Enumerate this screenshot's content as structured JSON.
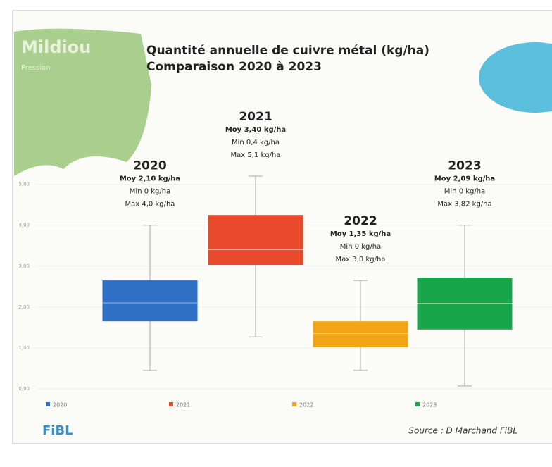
{
  "chart_data": {
    "type": "box",
    "corner_title": "Mildiou",
    "corner_subtitle": "Pression",
    "title": "Quantité annuelle de cuivre métal (kg/ha)",
    "subtitle": "Comparaison 2020 à 2023",
    "source": "Source : D Marchand FiBL",
    "logo": "FiBL",
    "ylim": [
      0,
      5.5
    ],
    "yticks": [
      {
        "value": 0,
        "label": "0,00"
      },
      {
        "value": 1,
        "label": "1,00"
      },
      {
        "value": 2,
        "label": "2,00"
      },
      {
        "value": 3,
        "label": "3,00"
      },
      {
        "value": 4,
        "label": "4,00"
      },
      {
        "value": 5,
        "label": "5,00"
      }
    ],
    "series": [
      {
        "name": "2020",
        "color": "#2f6fc4",
        "whisker_low": 0.45,
        "q1": 1.65,
        "median": 2.1,
        "q3": 2.65,
        "whisker_high": 4.0,
        "annotations": [
          "Moy 2,10 kg/ha",
          "Min 0 kg/ha",
          "Max 4,0 kg/ha"
        ]
      },
      {
        "name": "2021",
        "color": "#ea4a2c",
        "whisker_low": 1.27,
        "q1": 3.03,
        "median": 3.4,
        "q3": 4.25,
        "whisker_high": 5.2,
        "annotations": [
          "Moy 3,40 kg/ha",
          "Min 0,4 kg/ha",
          "Max 5,1 kg/ha"
        ]
      },
      {
        "name": "2022",
        "color": "#f2a516",
        "whisker_low": 0.45,
        "q1": 1.02,
        "median": 1.35,
        "q3": 1.65,
        "whisker_high": 2.65,
        "annotations": [
          "Moy 1,35 kg/ha",
          "Min 0 kg/ha",
          "Max 3,0 kg/ha"
        ]
      },
      {
        "name": "2023",
        "color": "#19a64a",
        "whisker_low": 0.07,
        "q1": 1.45,
        "median": 2.09,
        "q3": 2.72,
        "whisker_high": 4.0,
        "annotations": [
          "Moy 2,09 kg/ha",
          "Min 0 kg/ha",
          "Max 3,82 kg/ha"
        ]
      }
    ]
  }
}
